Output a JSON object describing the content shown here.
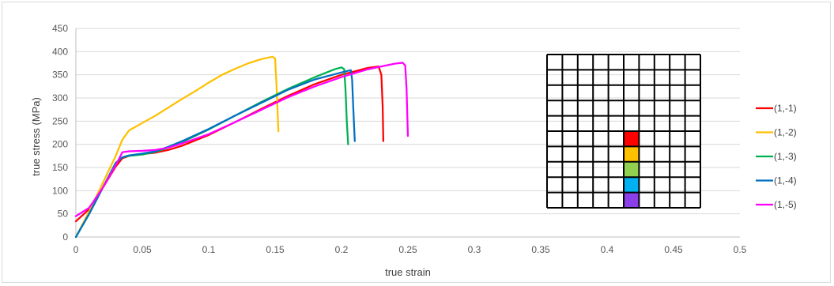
{
  "chart_data": {
    "type": "line",
    "title": "",
    "xlabel": "true strain",
    "ylabel": "true stress (MPa)",
    "xlim": [
      0,
      0.5
    ],
    "ylim": [
      0,
      450
    ],
    "xticks": [
      0,
      0.05,
      0.1,
      0.15,
      0.2,
      0.25,
      0.3,
      0.35,
      0.4,
      0.45,
      0.5
    ],
    "yticks": [
      0,
      50,
      100,
      150,
      200,
      250,
      300,
      350,
      400,
      450
    ],
    "xtick_labels": [
      "0",
      "0.05",
      "0.1",
      "0.15",
      "0.2",
      "0.25",
      "0.3",
      "0.35",
      "0.4",
      "0.45",
      "0.5"
    ],
    "ytick_labels": [
      "0",
      "50",
      "100",
      "150",
      "200",
      "250",
      "300",
      "350",
      "400",
      "450"
    ],
    "grid": "horizontal",
    "legend_position": "right",
    "series": [
      {
        "name": "(1,-1)",
        "color": "#ff0000",
        "points": [
          [
            0,
            34
          ],
          [
            0.01,
            60
          ],
          [
            0.02,
            105
          ],
          [
            0.03,
            152
          ],
          [
            0.035,
            170
          ],
          [
            0.04,
            175
          ],
          [
            0.05,
            179
          ],
          [
            0.06,
            182
          ],
          [
            0.07,
            188
          ],
          [
            0.08,
            197
          ],
          [
            0.1,
            220
          ],
          [
            0.12,
            248
          ],
          [
            0.14,
            277
          ],
          [
            0.16,
            305
          ],
          [
            0.18,
            330
          ],
          [
            0.2,
            350
          ],
          [
            0.22,
            365
          ],
          [
            0.228,
            368
          ],
          [
            0.23,
            350
          ],
          [
            0.231,
            280
          ],
          [
            0.2315,
            207
          ]
        ]
      },
      {
        "name": "(1,-2)",
        "color": "#ffc000",
        "points": [
          [
            0,
            0
          ],
          [
            0.01,
            55
          ],
          [
            0.02,
            115
          ],
          [
            0.03,
            175
          ],
          [
            0.035,
            210
          ],
          [
            0.04,
            230
          ],
          [
            0.05,
            246
          ],
          [
            0.06,
            262
          ],
          [
            0.07,
            280
          ],
          [
            0.08,
            298
          ],
          [
            0.09,
            315
          ],
          [
            0.1,
            333
          ],
          [
            0.11,
            350
          ],
          [
            0.12,
            363
          ],
          [
            0.13,
            375
          ],
          [
            0.14,
            384
          ],
          [
            0.148,
            389
          ],
          [
            0.15,
            385
          ],
          [
            0.151,
            330
          ],
          [
            0.152,
            260
          ],
          [
            0.1525,
            228
          ]
        ]
      },
      {
        "name": "(1,-3)",
        "color": "#00b050",
        "points": [
          [
            0,
            0
          ],
          [
            0.01,
            50
          ],
          [
            0.02,
            105
          ],
          [
            0.03,
            160
          ],
          [
            0.035,
            172
          ],
          [
            0.04,
            175
          ],
          [
            0.05,
            178
          ],
          [
            0.06,
            184
          ],
          [
            0.07,
            193
          ],
          [
            0.08,
            205
          ],
          [
            0.1,
            232
          ],
          [
            0.12,
            262
          ],
          [
            0.14,
            292
          ],
          [
            0.16,
            320
          ],
          [
            0.18,
            345
          ],
          [
            0.195,
            362
          ],
          [
            0.2,
            366
          ],
          [
            0.202,
            362
          ],
          [
            0.203,
            320
          ],
          [
            0.204,
            250
          ],
          [
            0.205,
            200
          ]
        ]
      },
      {
        "name": "(1,-4)",
        "color": "#0070c0",
        "points": [
          [
            0,
            0
          ],
          [
            0.01,
            50
          ],
          [
            0.02,
            105
          ],
          [
            0.03,
            160
          ],
          [
            0.035,
            172
          ],
          [
            0.04,
            176
          ],
          [
            0.05,
            180
          ],
          [
            0.06,
            185
          ],
          [
            0.07,
            195
          ],
          [
            0.08,
            207
          ],
          [
            0.1,
            233
          ],
          [
            0.12,
            262
          ],
          [
            0.14,
            290
          ],
          [
            0.16,
            318
          ],
          [
            0.18,
            340
          ],
          [
            0.2,
            355
          ],
          [
            0.207,
            360
          ],
          [
            0.208,
            340
          ],
          [
            0.209,
            270
          ],
          [
            0.21,
            207
          ]
        ]
      },
      {
        "name": "(1,-5)",
        "color": "#ff00ff",
        "points": [
          [
            0,
            45
          ],
          [
            0.01,
            63
          ],
          [
            0.02,
            105
          ],
          [
            0.03,
            155
          ],
          [
            0.035,
            183
          ],
          [
            0.04,
            185
          ],
          [
            0.05,
            186
          ],
          [
            0.06,
            188
          ],
          [
            0.07,
            193
          ],
          [
            0.08,
            202
          ],
          [
            0.1,
            222
          ],
          [
            0.12,
            248
          ],
          [
            0.14,
            275
          ],
          [
            0.16,
            302
          ],
          [
            0.18,
            325
          ],
          [
            0.2,
            345
          ],
          [
            0.22,
            362
          ],
          [
            0.24,
            374
          ],
          [
            0.246,
            376
          ],
          [
            0.248,
            370
          ],
          [
            0.249,
            320
          ],
          [
            0.25,
            218
          ]
        ]
      }
    ]
  },
  "inset": {
    "grid_size": 10,
    "line_color": "#000000",
    "highlighted_cells": [
      {
        "row": 5,
        "col": 5,
        "color": "#ff0000"
      },
      {
        "row": 6,
        "col": 5,
        "color": "#ffc000"
      },
      {
        "row": 7,
        "col": 5,
        "color": "#92d050"
      },
      {
        "row": 8,
        "col": 5,
        "color": "#00b0f0"
      },
      {
        "row": 9,
        "col": 5,
        "color": "#8b3fe8"
      }
    ]
  }
}
